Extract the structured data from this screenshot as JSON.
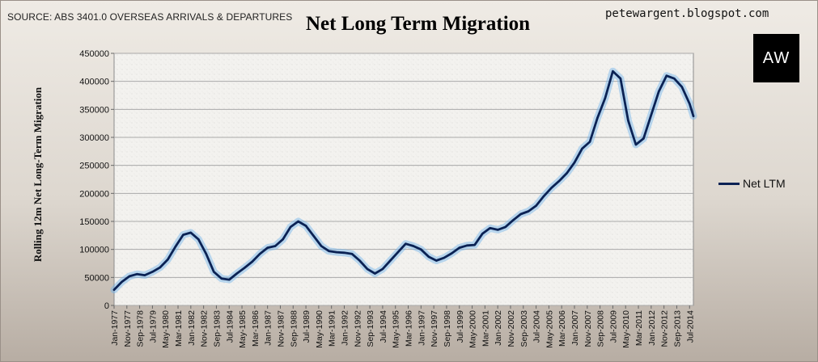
{
  "source": "SOURCE: ABS 3401.0 OVERSEAS ARRIVALS & DEPARTURES",
  "site": "petewargent.blogspot.com",
  "logo_text": "AW",
  "colors": {
    "line": "#0b2254",
    "glow": "#6fb1ea",
    "grid": "#a9a9a9",
    "plot_bg": "#f2f1ee"
  },
  "chart_data": {
    "type": "line",
    "title": "Net Long Term Migration",
    "xlabel": "",
    "ylabel": "Rolling 12m Net Long-Term Migration",
    "ylim": [
      0,
      450000
    ],
    "yticks": [
      0,
      50000,
      100000,
      150000,
      200000,
      250000,
      300000,
      350000,
      400000,
      450000
    ],
    "ytick_labels": [
      "0",
      "50000",
      "100000",
      "150000",
      "200000",
      "250000",
      "300000",
      "350000",
      "400000",
      "450000"
    ],
    "x_start": "Jan-1977",
    "x_end": "Oct-2014",
    "xtick_labels": [
      "Jan-1977",
      "Nov-1977",
      "Sep-1978",
      "Jul-1979",
      "May-1980",
      "Mar-1981",
      "Jan-1982",
      "Nov-1982",
      "Sep-1983",
      "Jul-1984",
      "May-1985",
      "Mar-1986",
      "Jan-1987",
      "Nov-1987",
      "Sep-1988",
      "Jul-1989",
      "May-1990",
      "Mar-1991",
      "Jan-1992",
      "Nov-1992",
      "Sep-1993",
      "Jul-1994",
      "May-1995",
      "Mar-1996",
      "Jan-1997",
      "Nov-1997",
      "Sep-1998",
      "Jul-1999",
      "May-2000",
      "Mar-2001",
      "Jan-2002",
      "Nov-2002",
      "Sep-2003",
      "Jul-2004",
      "May-2005",
      "Mar-2006",
      "Jan-2007",
      "Nov-2007",
      "Sep-2008",
      "Jul-2009",
      "May-2010",
      "Mar-2011",
      "Jan-2012",
      "Nov-2012",
      "Sep-2013",
      "Jul-2014"
    ],
    "legend": "right",
    "series": [
      {
        "name": "Net LTM",
        "points": [
          [
            "Jan-1977",
            28000
          ],
          [
            "Jul-1977",
            42000
          ],
          [
            "Jan-1978",
            52000
          ],
          [
            "Jul-1978",
            56000
          ],
          [
            "Jan-1979",
            54000
          ],
          [
            "Jul-1979",
            60000
          ],
          [
            "Jan-1980",
            68000
          ],
          [
            "Jul-1980",
            82000
          ],
          [
            "Jan-1981",
            105000
          ],
          [
            "Jul-1981",
            126000
          ],
          [
            "Jan-1982",
            130000
          ],
          [
            "Jul-1982",
            118000
          ],
          [
            "Jan-1983",
            92000
          ],
          [
            "Jul-1983",
            60000
          ],
          [
            "Jan-1984",
            48000
          ],
          [
            "Jul-1984",
            46000
          ],
          [
            "Jan-1985",
            57000
          ],
          [
            "Jul-1985",
            67000
          ],
          [
            "Jan-1986",
            78000
          ],
          [
            "Jul-1986",
            92000
          ],
          [
            "Jan-1987",
            103000
          ],
          [
            "Jul-1987",
            106000
          ],
          [
            "Jan-1988",
            118000
          ],
          [
            "Jul-1988",
            140000
          ],
          [
            "Jan-1989",
            150000
          ],
          [
            "Jul-1989",
            142000
          ],
          [
            "Jan-1990",
            124000
          ],
          [
            "Jul-1990",
            106000
          ],
          [
            "Jan-1991",
            97000
          ],
          [
            "Jul-1991",
            95000
          ],
          [
            "Jan-1992",
            94000
          ],
          [
            "Jul-1992",
            92000
          ],
          [
            "Jan-1993",
            80000
          ],
          [
            "Jul-1993",
            65000
          ],
          [
            "Jan-1994",
            57000
          ],
          [
            "Jul-1994",
            65000
          ],
          [
            "Jan-1995",
            80000
          ],
          [
            "Jul-1995",
            95000
          ],
          [
            "Jan-1996",
            110000
          ],
          [
            "Jul-1996",
            106000
          ],
          [
            "Jan-1997",
            100000
          ],
          [
            "Jul-1997",
            87000
          ],
          [
            "Jan-1998",
            80000
          ],
          [
            "Jul-1998",
            85000
          ],
          [
            "Jan-1999",
            93000
          ],
          [
            "Jul-1999",
            103000
          ],
          [
            "Jan-2000",
            107000
          ],
          [
            "Jul-2000",
            108000
          ],
          [
            "Jan-2001",
            128000
          ],
          [
            "Jul-2001",
            138000
          ],
          [
            "Jan-2002",
            135000
          ],
          [
            "Jul-2002",
            140000
          ],
          [
            "Jan-2003",
            152000
          ],
          [
            "Jul-2003",
            163000
          ],
          [
            "Jan-2004",
            168000
          ],
          [
            "Jul-2004",
            178000
          ],
          [
            "Jan-2005",
            195000
          ],
          [
            "Jul-2005",
            210000
          ],
          [
            "Jan-2006",
            222000
          ],
          [
            "Jul-2006",
            236000
          ],
          [
            "Jan-2007",
            255000
          ],
          [
            "Jul-2007",
            280000
          ],
          [
            "Jan-2008",
            292000
          ],
          [
            "Jul-2008",
            335000
          ],
          [
            "Jan-2009",
            370000
          ],
          [
            "Jul-2009",
            418000
          ],
          [
            "Jan-2010",
            405000
          ],
          [
            "Jul-2010",
            330000
          ],
          [
            "Jan-2011",
            287000
          ],
          [
            "Jul-2011",
            298000
          ],
          [
            "Jan-2012",
            340000
          ],
          [
            "Jul-2012",
            382000
          ],
          [
            "Jan-2013",
            410000
          ],
          [
            "Jul-2013",
            405000
          ],
          [
            "Jan-2014",
            390000
          ],
          [
            "Jul-2014",
            360000
          ],
          [
            "Oct-2014",
            338000
          ]
        ]
      }
    ]
  }
}
